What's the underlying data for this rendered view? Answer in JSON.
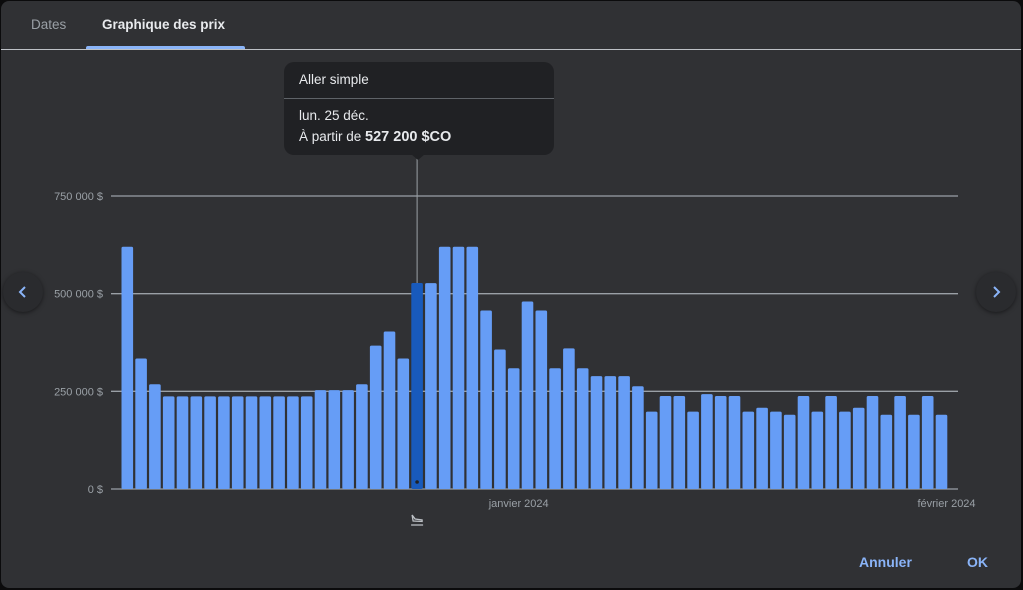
{
  "tabs": [
    {
      "label": "Dates",
      "active": false
    },
    {
      "label": "Graphique des prix",
      "active": true
    }
  ],
  "tooltip": {
    "trip_type": "Aller simple",
    "date": "lun. 25 déc.",
    "price_prefix": "À partir de",
    "price": "527 200 $CO"
  },
  "colors": {
    "bar": "#669df6",
    "bar_selected": "#185abc",
    "accent": "#8ab4f8",
    "background": "#303134"
  },
  "icons": {
    "prev": "chevron-left-icon",
    "next": "chevron-right-icon",
    "marker": "flight-land-icon"
  },
  "footer": {
    "cancel_label": "Annuler",
    "ok_label": "OK"
  },
  "chart_data": {
    "type": "bar",
    "x_start": "2023-12-04",
    "x_end": "2024-02-01",
    "x_tick_labels": [
      {
        "date": "2024-01-01",
        "label": "janvier 2024"
      },
      {
        "date": "2024-02-01",
        "label": "février 2024"
      }
    ],
    "y_ticks": [
      {
        "value": 0,
        "label": "0 $"
      },
      {
        "value": 250000,
        "label": "250 000 $"
      },
      {
        "value": 500000,
        "label": "500 000 $"
      },
      {
        "value": 750000,
        "label": "750 000 $"
      }
    ],
    "ylim": [
      0,
      750000
    ],
    "grid": true,
    "selected_date": "2023-12-25",
    "values": [
      620000,
      334000,
      268000,
      237000,
      237000,
      237000,
      237000,
      237000,
      237000,
      237000,
      237000,
      237000,
      237000,
      237000,
      253000,
      253000,
      253000,
      268000,
      367000,
      403000,
      334000,
      527200,
      527000,
      620000,
      620000,
      620000,
      457000,
      357000,
      309000,
      480000,
      457000,
      309000,
      360000,
      309000,
      289000,
      289000,
      289000,
      263000,
      198000,
      238000,
      238000,
      198000,
      243000,
      238000,
      238000,
      198000,
      208000,
      198000,
      190000,
      238000,
      198000,
      238000,
      198000,
      208000,
      238000,
      190000,
      238000,
      190000,
      238000,
      190000
    ]
  }
}
